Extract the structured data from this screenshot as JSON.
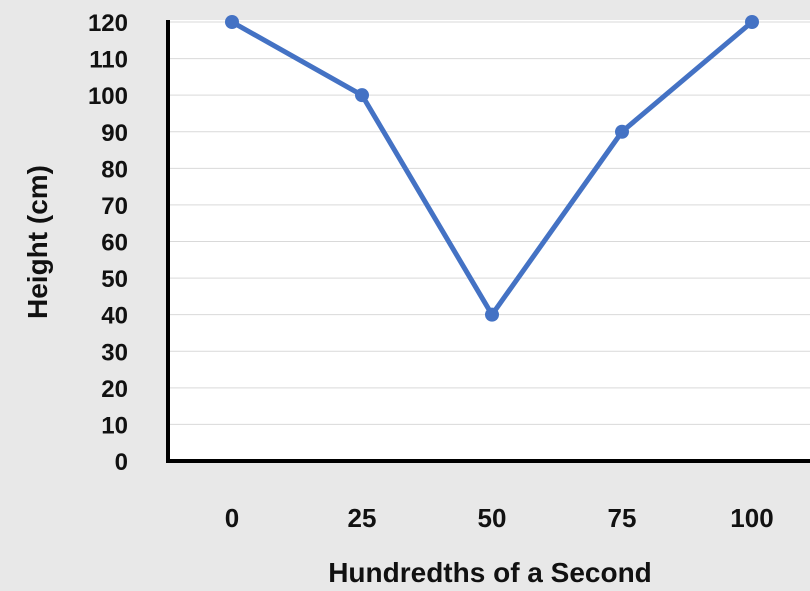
{
  "chart_data": {
    "type": "line",
    "x": [
      0,
      25,
      50,
      75,
      100
    ],
    "categories": [
      "0",
      "25",
      "50",
      "75",
      "100"
    ],
    "series": [
      {
        "values": [
          120,
          100,
          40,
          90,
          120
        ]
      }
    ],
    "xlabel": "Hundredths of a Second",
    "ylabel": "Height (cm)",
    "ylim": [
      0,
      120
    ],
    "yticks": [
      "0",
      "10",
      "20",
      "30",
      "40",
      "50",
      "60",
      "70",
      "80",
      "90",
      "100",
      "110",
      "120"
    ],
    "grid": true,
    "line_color": "#4472C4",
    "grid_color": "#d9d9d9",
    "plot_background": "#ffffff"
  }
}
